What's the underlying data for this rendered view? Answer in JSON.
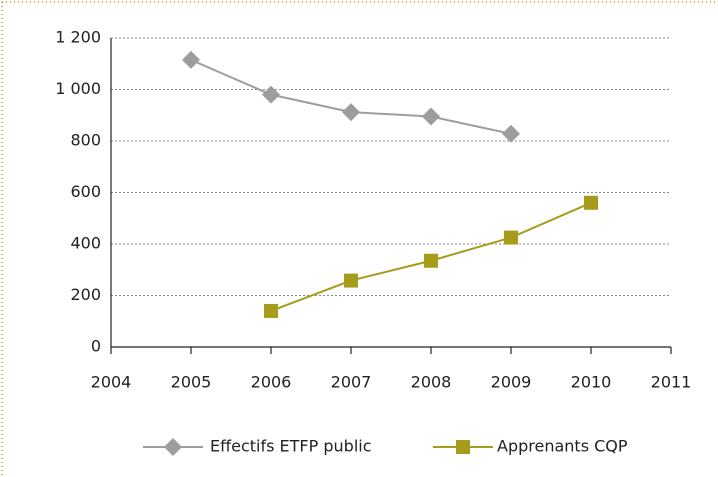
{
  "chart_data": {
    "type": "line",
    "x": [
      2005,
      2006,
      2007,
      2008,
      2009,
      2010
    ],
    "series": [
      {
        "name": "Effectifs ETFP public",
        "color": "#9d9d9d",
        "marker": "diamond",
        "values": [
          1115,
          980,
          912,
          895,
          828,
          null
        ]
      },
      {
        "name": "Apprenants CQP",
        "color": "#a59c1c",
        "marker": "square",
        "values": [
          null,
          140,
          258,
          335,
          425,
          560
        ]
      }
    ],
    "xlim": [
      2004,
      2011
    ],
    "xticks": [
      2004,
      2005,
      2006,
      2007,
      2008,
      2009,
      2010,
      2011
    ],
    "ylim": [
      0,
      1200
    ],
    "yticks": [
      0,
      200,
      400,
      600,
      800,
      {
        "value": 1000,
        "label": "1 000"
      },
      {
        "value": 1200,
        "label": "1 200"
      }
    ],
    "grid": true,
    "legend": "bottom"
  }
}
